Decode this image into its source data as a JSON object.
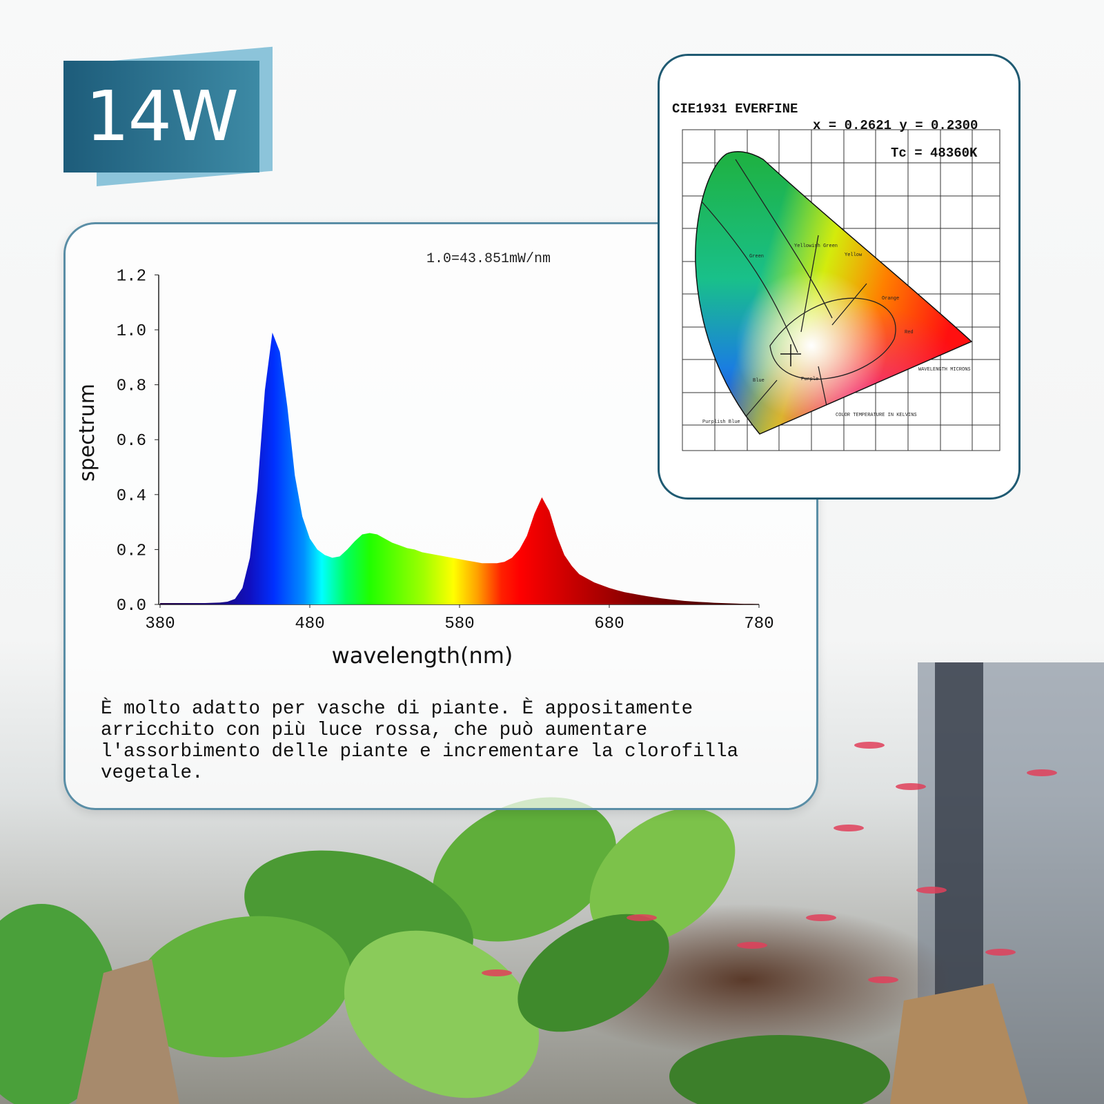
{
  "badge": "14W",
  "chart_data": {
    "type": "area",
    "annotation": "1.0=43.851mW/nm",
    "x_label": "wavelength(nm)",
    "y_label": "spectrum",
    "x": [
      380,
      385,
      390,
      395,
      400,
      405,
      410,
      415,
      420,
      425,
      430,
      435,
      440,
      445,
      450,
      455,
      460,
      465,
      470,
      475,
      480,
      485,
      490,
      495,
      500,
      505,
      510,
      515,
      520,
      525,
      530,
      535,
      540,
      545,
      550,
      555,
      560,
      565,
      570,
      575,
      580,
      585,
      590,
      595,
      600,
      605,
      610,
      615,
      620,
      625,
      630,
      635,
      640,
      645,
      650,
      655,
      660,
      665,
      670,
      675,
      680,
      685,
      690,
      695,
      700,
      705,
      710,
      715,
      720,
      725,
      730,
      735,
      740,
      745,
      750,
      755,
      760,
      765,
      770,
      775,
      780
    ],
    "values": [
      0.005,
      0.005,
      0.005,
      0.005,
      0.005,
      0.005,
      0.005,
      0.006,
      0.007,
      0.01,
      0.02,
      0.06,
      0.17,
      0.42,
      0.78,
      0.99,
      0.92,
      0.72,
      0.47,
      0.32,
      0.24,
      0.2,
      0.18,
      0.17,
      0.175,
      0.2,
      0.23,
      0.255,
      0.26,
      0.255,
      0.24,
      0.225,
      0.215,
      0.205,
      0.2,
      0.19,
      0.185,
      0.18,
      0.175,
      0.17,
      0.165,
      0.16,
      0.155,
      0.15,
      0.15,
      0.15,
      0.155,
      0.17,
      0.2,
      0.25,
      0.33,
      0.39,
      0.34,
      0.25,
      0.18,
      0.14,
      0.11,
      0.095,
      0.08,
      0.07,
      0.06,
      0.052,
      0.045,
      0.04,
      0.035,
      0.03,
      0.026,
      0.022,
      0.019,
      0.016,
      0.013,
      0.011,
      0.009,
      0.008,
      0.006,
      0.005,
      0.004,
      0.003,
      0.002,
      0.002,
      0.001
    ],
    "xlim": [
      380,
      780
    ],
    "xticks": [
      380,
      480,
      580,
      680,
      780
    ],
    "ylim": [
      0,
      1.2
    ],
    "yticks": [
      {
        "value": 0,
        "label": "0.0"
      },
      {
        "value": 0.2,
        "label": "0.2"
      },
      {
        "value": 0.4,
        "label": "0.4"
      },
      {
        "value": 0.6,
        "label": "0.6"
      },
      {
        "value": 0.8,
        "label": "0.8"
      },
      {
        "value": 1,
        "label": "1.0"
      },
      {
        "value": 1.2,
        "label": "1.2"
      }
    ]
  },
  "cie": {
    "title": "CIE1931 EVERFINE",
    "coords": "x = 0.2621 y = 0.2300",
    "tc": "Tc = 48360K",
    "labels": [
      "Green",
      "Yellowish Green",
      "Yellow",
      "Orange",
      "Red",
      "Blue",
      "Purple",
      "Purplish Blue",
      "COLOR TEMPERATURE IN KELVINS",
      "WAVELENGTH MICRONS"
    ]
  },
  "description": "È molto adatto per vasche di piante. È appositamente arricchito con più luce rossa, che può aumentare l'assorbimento delle piante e incrementare la clorofilla vegetale."
}
